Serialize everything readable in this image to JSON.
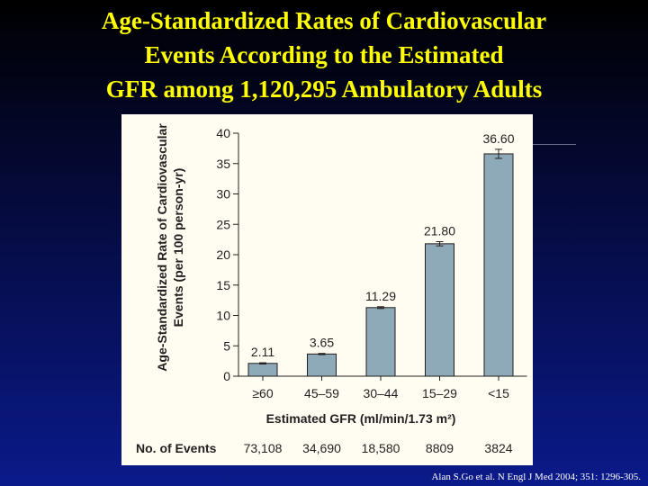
{
  "slide": {
    "title_lines": [
      "Age-Standardized Rates of Cardiovascular",
      "Events According to the Estimated",
      "GFR among 1,120,295 Ambulatory Adults"
    ],
    "citation": "Alan S.Go et al. N Engl J Med 2004; 351: 1296-305."
  },
  "chart_data": {
    "type": "bar",
    "title": "",
    "ylabel": "Age-Standardized Rate of Cardiovascular Events (per 100 person-yr)",
    "ylabel_lines": [
      "Age-Standardized Rate of Cardiovascular",
      "Events (per 100 person-yr)"
    ],
    "xlabel": "Estimated GFR (ml/min/1.73 m²)",
    "ylim": [
      0,
      40
    ],
    "yticks": [
      0,
      5,
      10,
      15,
      20,
      25,
      30,
      35,
      40
    ],
    "categories": [
      "≥60",
      "45–59",
      "30–44",
      "15–29",
      "<15"
    ],
    "values": [
      2.11,
      3.65,
      11.29,
      21.8,
      36.6
    ],
    "value_labels": [
      "2.11",
      "3.65",
      "11.29",
      "21.80",
      "36.60"
    ],
    "error_half_width": [
      0.1,
      0.1,
      0.15,
      0.35,
      0.75
    ],
    "bar_color": "#8eaab8",
    "bar_edge_color": "#231f20",
    "events_label": "No. of Events",
    "events": [
      "73,108",
      "34,690",
      "18,580",
      "8809",
      "3824"
    ]
  }
}
